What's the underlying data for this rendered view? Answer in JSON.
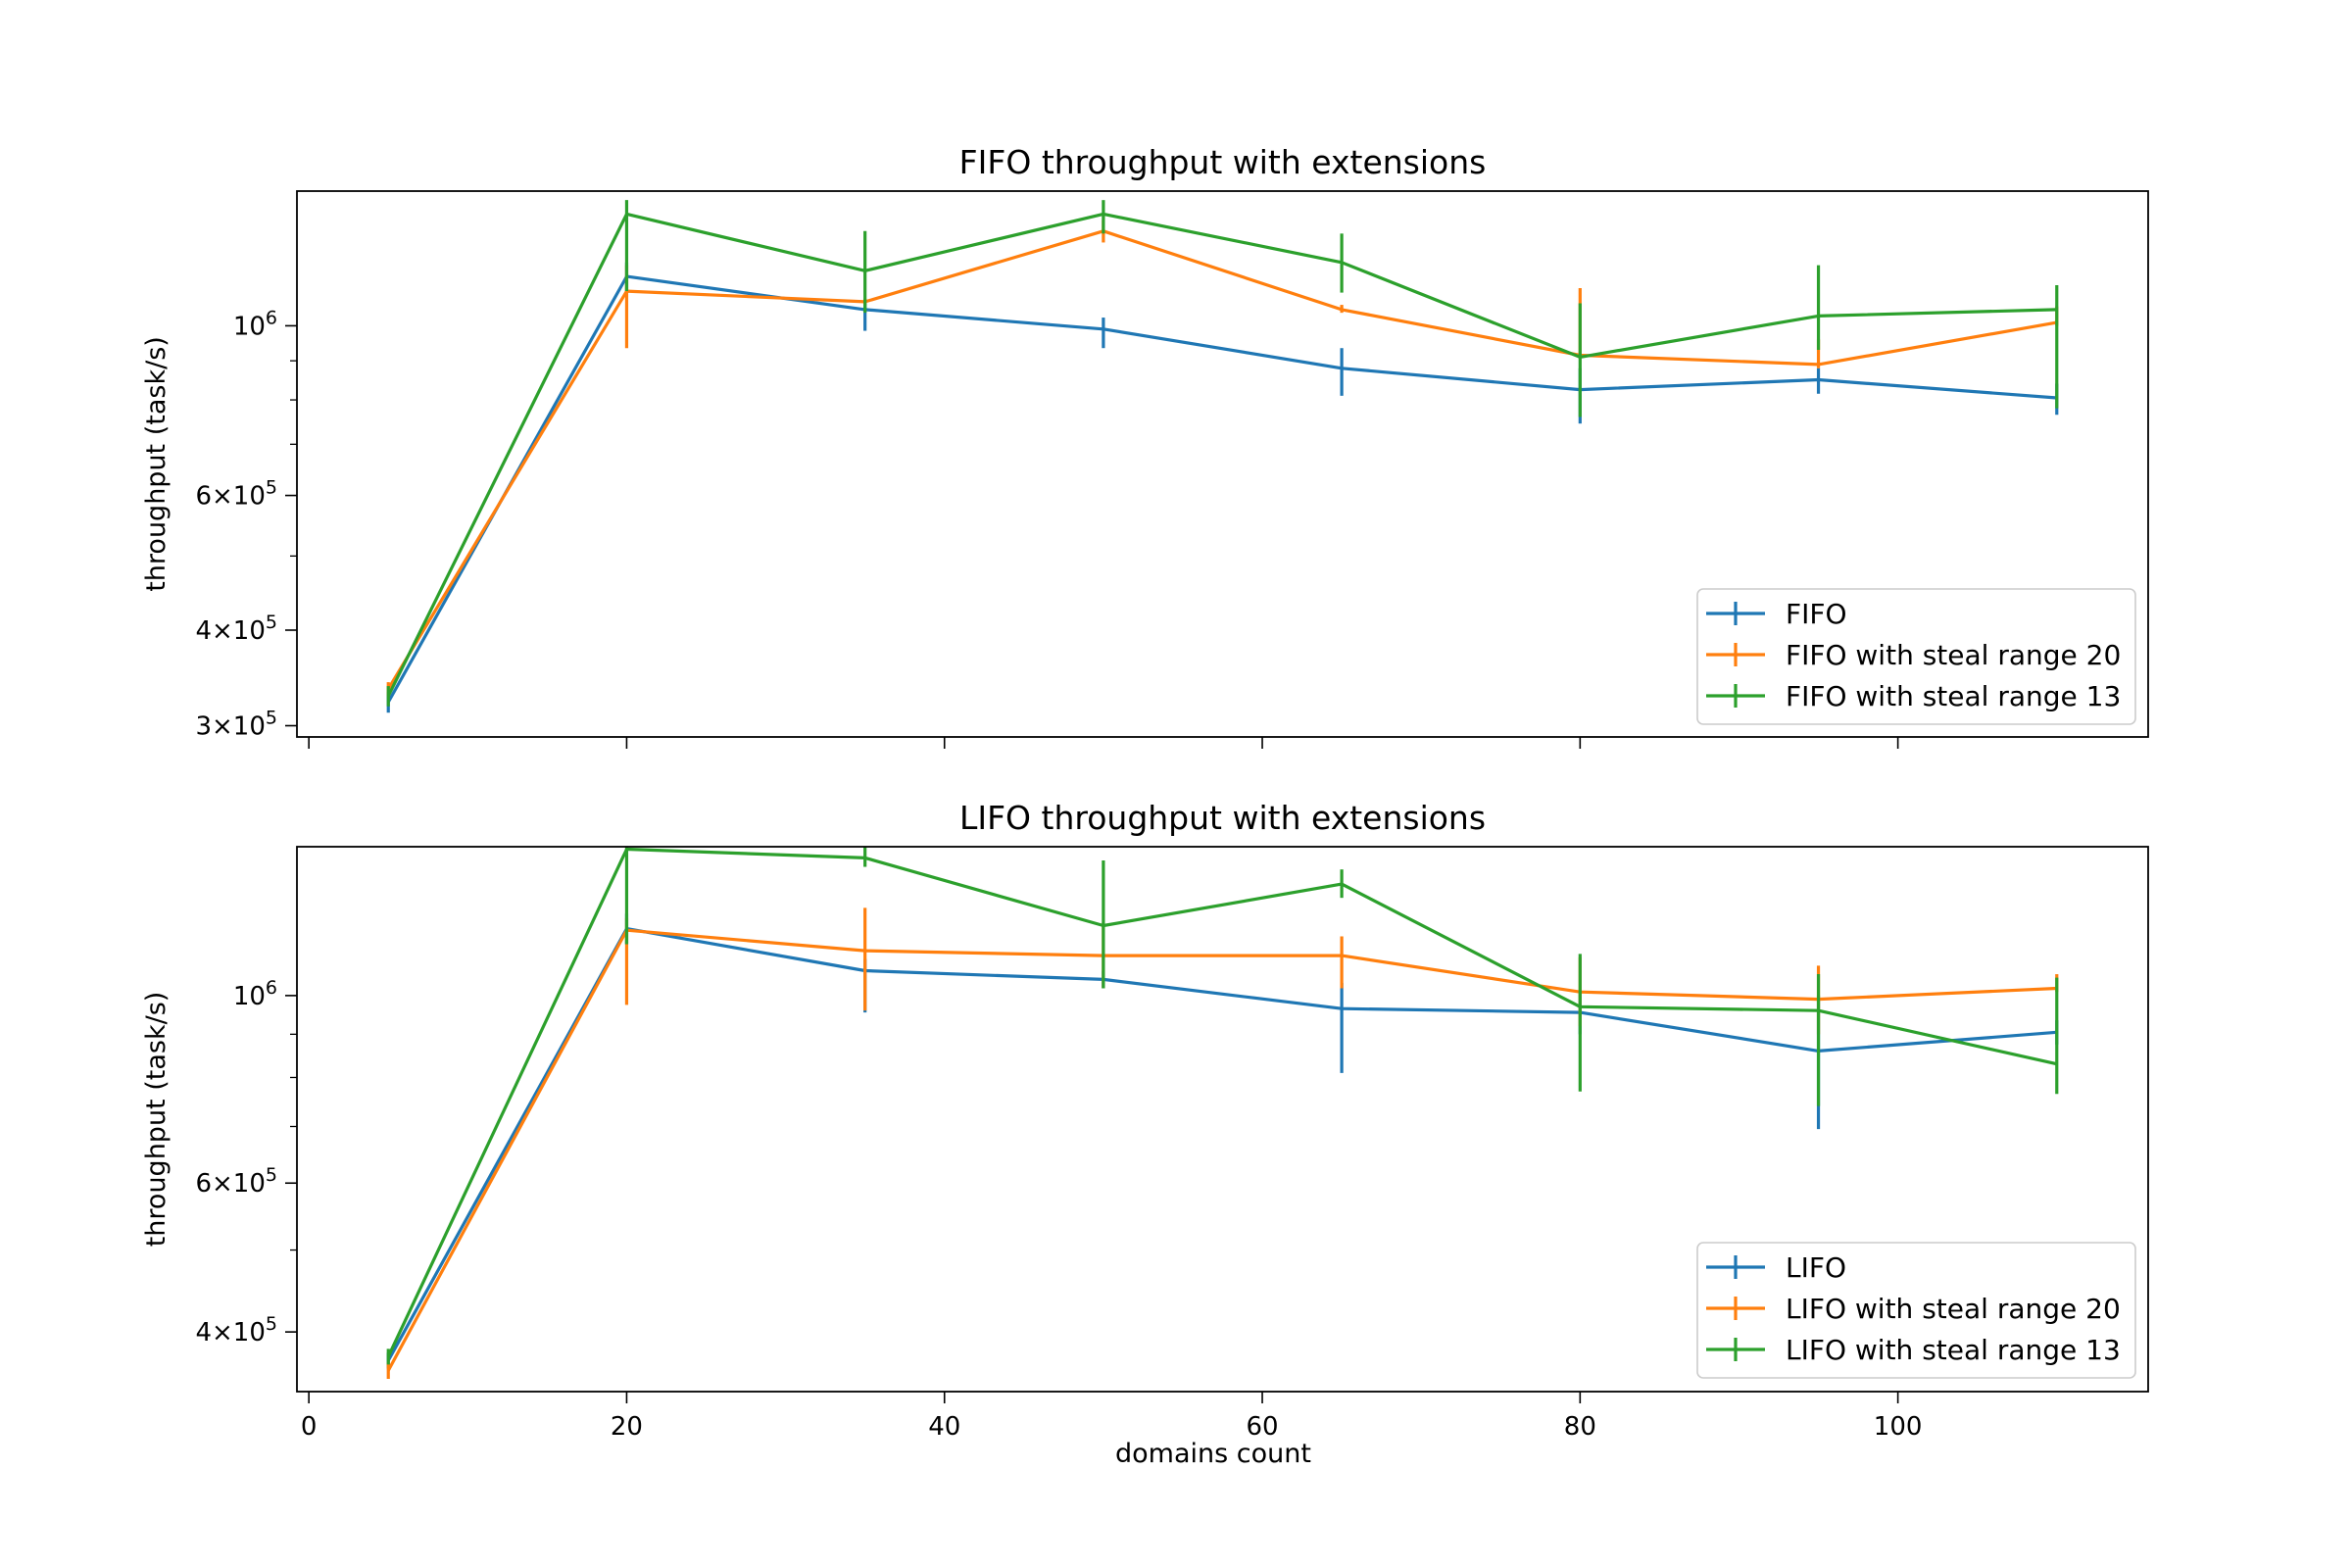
{
  "colors": {
    "series1": "#1f77b4",
    "series2": "#ff7f0e",
    "series3": "#2ca02c"
  },
  "shared": {
    "xlabel": "domains count",
    "xlim": [
      -0.75,
      115.75
    ],
    "xticks": [
      0,
      20,
      40,
      60,
      80,
      100
    ]
  },
  "chart_data": [
    {
      "type": "line",
      "title": "FIFO throughput with extensions",
      "xlabel": "domains count",
      "ylabel": "throughput (task/s)",
      "yscale": "log",
      "ylim": [
        290000,
        1500000
      ],
      "yticks": [
        {
          "value": 300000,
          "mant": "3",
          "exp": "5"
        },
        {
          "value": 400000,
          "mant": "4",
          "exp": "5"
        },
        {
          "value": 600000,
          "mant": "6",
          "exp": "5"
        },
        {
          "value": 1000000,
          "mant": "",
          "exp": "6"
        }
      ],
      "x_tick_labels_shown": false,
      "legend_position": "lower right",
      "x": [
        5,
        20,
        35,
        50,
        65,
        80,
        95,
        110
      ],
      "series": [
        {
          "name": "FIFO",
          "color": "#1f77b4",
          "values": [
            322000,
            1160000,
            1050000,
            990000,
            880000,
            825000,
            850000,
            805000
          ],
          "err_low": [
            312000,
            1110000,
            985000,
            935000,
            810000,
            745000,
            815000,
            765000
          ],
          "err_high": [
            332000,
            1210000,
            1080000,
            1025000,
            935000,
            880000,
            880000,
            840000
          ]
        },
        {
          "name": "FIFO with steal range 20",
          "color": "#ff7f0e",
          "values": [
            335000,
            1110000,
            1075000,
            1330000,
            1050000,
            915000,
            890000,
            1010000
          ],
          "err_low": [
            328000,
            935000,
            1065000,
            1285000,
            1040000,
            910000,
            880000,
            1000000
          ],
          "err_high": [
            342000,
            1200000,
            1085000,
            1375000,
            1065000,
            1120000,
            960000,
            1060000
          ]
        },
        {
          "name": "FIFO with steal range 13",
          "color": "#2ca02c",
          "values": [
            328000,
            1400000,
            1180000,
            1400000,
            1210000,
            910000,
            1030000,
            1050000
          ],
          "err_low": [
            318000,
            1110000,
            1040000,
            1320000,
            1105000,
            760000,
            930000,
            780000
          ],
          "err_high": [
            338000,
            1460000,
            1330000,
            1460000,
            1320000,
            1070000,
            1200000,
            1130000
          ]
        }
      ],
      "legend": [
        "FIFO",
        "FIFO with steal range 20",
        "FIFO with steal range 13"
      ]
    },
    {
      "type": "line",
      "title": "LIFO throughput with extensions",
      "xlabel": "domains count",
      "ylabel": "throughput (task/s)",
      "yscale": "log",
      "ylim": [
        340000,
        1500000
      ],
      "yticks": [
        {
          "value": 400000,
          "mant": "4",
          "exp": "5"
        },
        {
          "value": 600000,
          "mant": "6",
          "exp": "5"
        },
        {
          "value": 1000000,
          "mant": "",
          "exp": "6"
        }
      ],
      "x_tick_labels_shown": true,
      "legend_position": "lower right",
      "x": [
        5,
        20,
        35,
        50,
        65,
        80,
        95,
        110
      ],
      "series": [
        {
          "name": "LIFO",
          "color": "#1f77b4",
          "values": [
            370000,
            1200000,
            1070000,
            1045000,
            965000,
            955000,
            860000,
            905000
          ],
          "err_low": [
            362000,
            1150000,
            955000,
            1020000,
            810000,
            900000,
            695000,
            875000
          ],
          "err_high": [
            378000,
            1250000,
            1105000,
            1070000,
            1035000,
            1010000,
            1000000,
            935000
          ]
        },
        {
          "name": "LIFO with steal range 20",
          "color": "#ff7f0e",
          "values": [
            360000,
            1195000,
            1130000,
            1115000,
            1115000,
            1010000,
            990000,
            1020000
          ],
          "err_low": [
            352000,
            975000,
            960000,
            1020000,
            1020000,
            920000,
            900000,
            1010000
          ],
          "err_high": [
            368000,
            1235000,
            1270000,
            1220000,
            1175000,
            1110000,
            1085000,
            1060000
          ]
        },
        {
          "name": "LIFO with steal range 13",
          "color": "#2ca02c",
          "values": [
            374000,
            1490000,
            1455000,
            1210000,
            1355000,
            970000,
            960000,
            830000
          ],
          "err_low": [
            366000,
            1150000,
            1420000,
            1020000,
            1305000,
            770000,
            740000,
            765000
          ],
          "err_high": [
            382000,
            1520000,
            1500000,
            1445000,
            1410000,
            1120000,
            1060000,
            1050000
          ]
        }
      ],
      "legend": [
        "LIFO",
        "LIFO with steal range 20",
        "LIFO with steal range 13"
      ]
    }
  ]
}
